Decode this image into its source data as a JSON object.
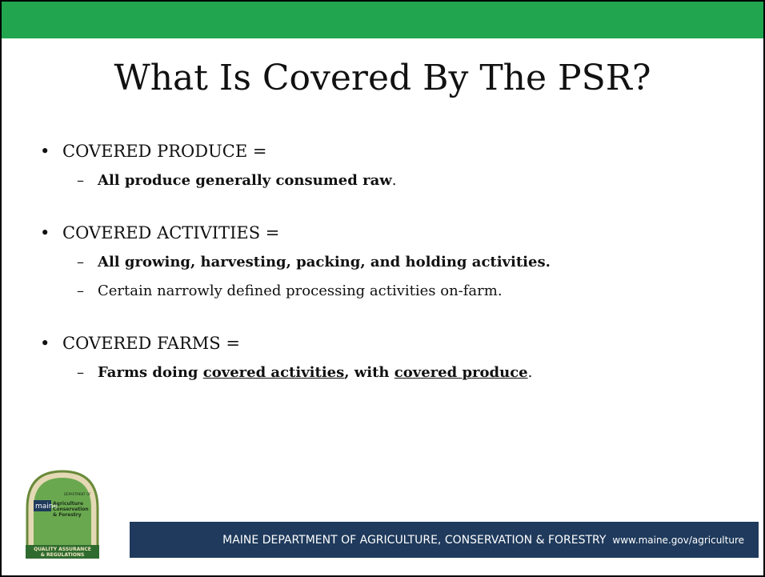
{
  "slide": {
    "title": "What Is Covered By The PSR?",
    "bullets": [
      {
        "heading": "COVERED PRODUCE =",
        "items": [
          {
            "segments": [
              {
                "text": "All produce generally consumed raw",
                "style": "bold"
              },
              {
                "text": ".",
                "style": "normal"
              }
            ]
          }
        ]
      },
      {
        "heading": "COVERED ACTIVITIES =",
        "items": [
          {
            "segments": [
              {
                "text": "All growing, harvesting, packing, and holding activities.",
                "style": "bold"
              }
            ]
          },
          {
            "segments": [
              {
                "text": "Certain narrowly defined processing activities on-farm.",
                "style": "normal"
              }
            ]
          }
        ]
      },
      {
        "heading": "COVERED FARMS =",
        "items": [
          {
            "segments": [
              {
                "text": "Farms doing ",
                "style": "bold"
              },
              {
                "text": "covered activities",
                "style": "bold-underline"
              },
              {
                "text": ", with ",
                "style": "bold"
              },
              {
                "text": "covered produce",
                "style": "bold-underline"
              },
              {
                "text": ".",
                "style": "normal"
              }
            ]
          }
        ]
      }
    ],
    "footer": {
      "organization": "MAINE DEPARTMENT OF AGRICULTURE, CONSERVATION & FORESTRY",
      "url": "www.maine.gov/agriculture"
    },
    "logo": {
      "department": "DEPARTMENT OF",
      "state": "maine",
      "lines": [
        "Agriculture",
        "Conservation",
        "& Forestry"
      ],
      "banner": [
        "QUALITY ASSURANCE",
        "& REGULATIONS"
      ]
    }
  }
}
